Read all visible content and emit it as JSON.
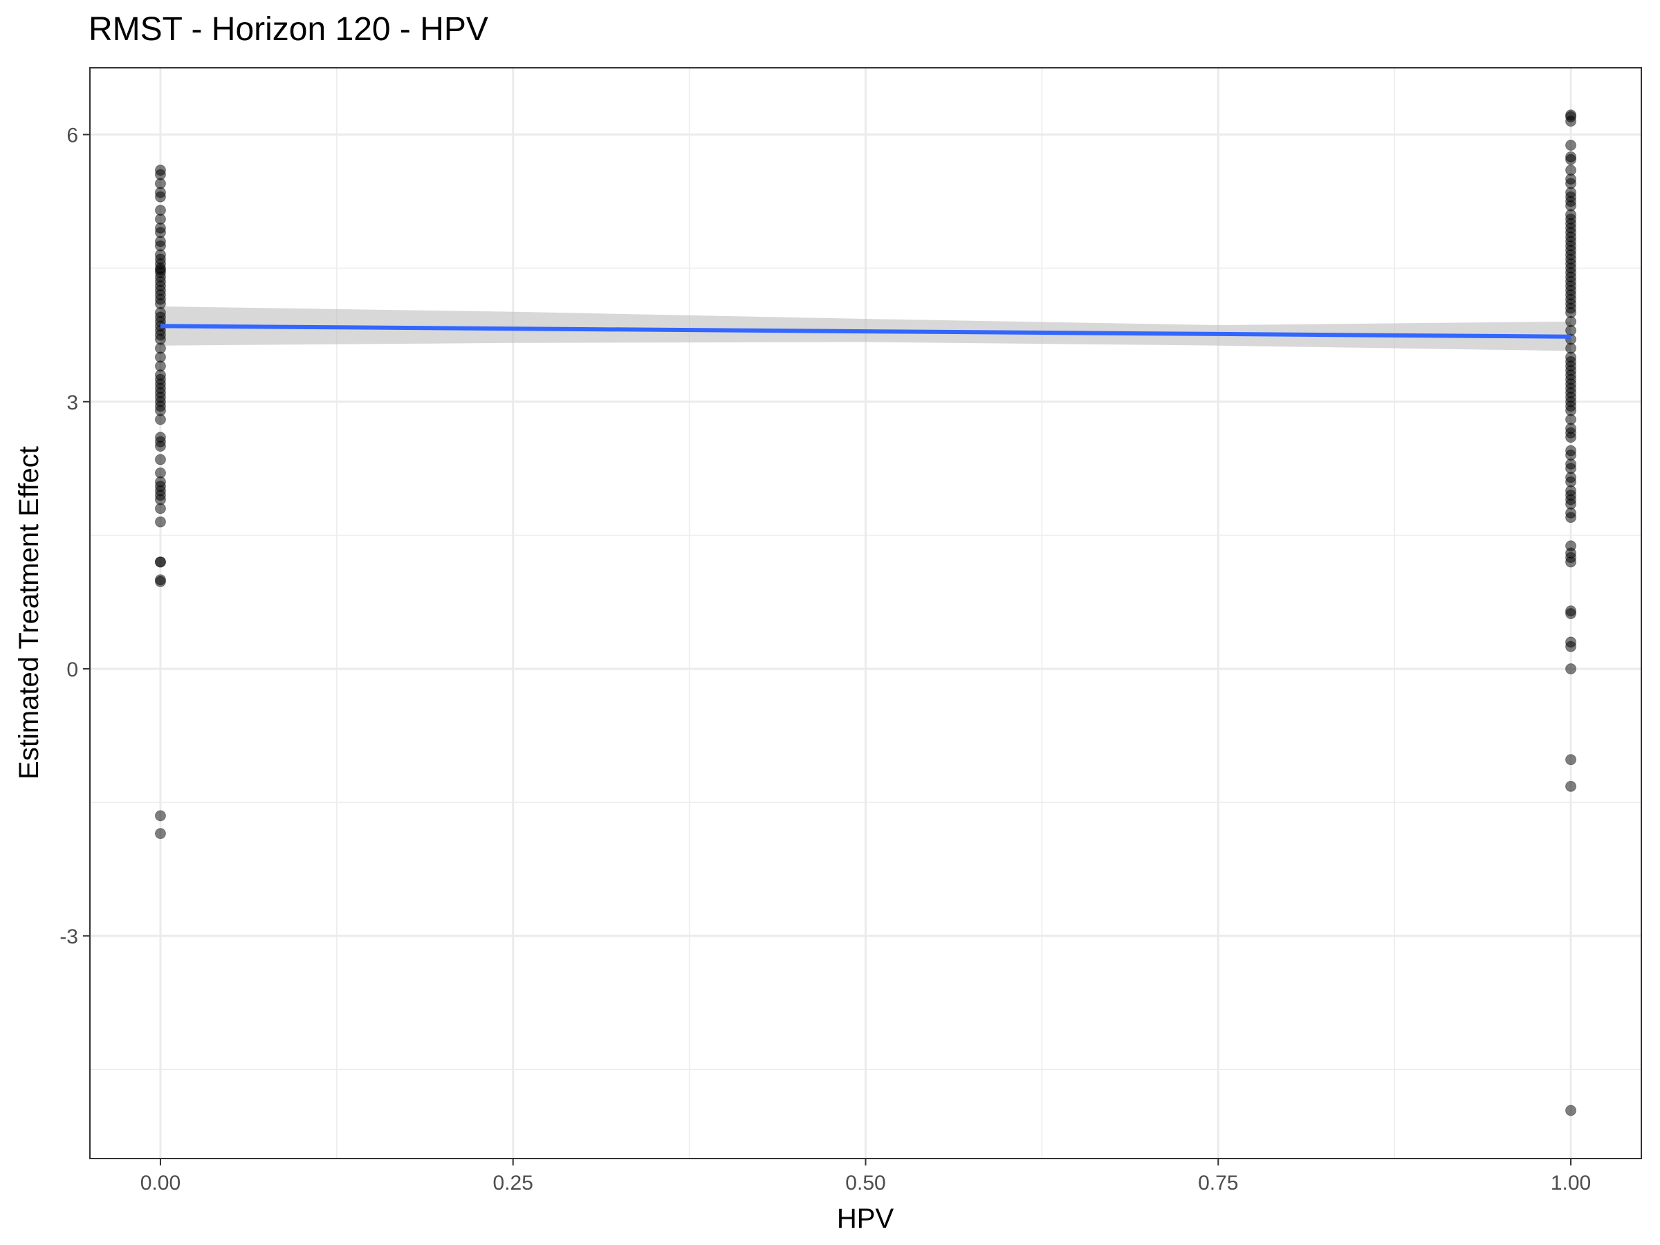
{
  "chart_data": {
    "type": "scatter",
    "title": "RMST - Horizon 120 - HPV",
    "xlabel": "HPV",
    "ylabel": "Estimated Treatment Effect",
    "xlim": [
      -0.05,
      1.05
    ],
    "ylim": [
      -5.5,
      6.75
    ],
    "x_ticks": [
      0,
      0.25,
      0.5,
      0.75,
      1
    ],
    "x_tick_labels": [
      "0.00",
      "0.25",
      "0.50",
      "0.75",
      "1.00"
    ],
    "y_ticks": [
      -3,
      0,
      3,
      6
    ],
    "y_tick_labels": [
      "-3",
      "0",
      "3",
      "6"
    ],
    "grid": true,
    "legend": "none",
    "colors": {
      "points": "#000000",
      "fit_line": "#3366FF",
      "confidence_band": "#BEBEBE",
      "grid": "#EBEBEB",
      "panel_border": "#333333"
    },
    "series": [
      {
        "x": [
          0,
          0,
          0,
          0,
          0,
          0,
          0,
          0,
          0,
          0,
          0,
          0,
          0,
          0,
          0,
          0,
          0,
          0,
          0,
          0,
          0,
          0,
          0,
          0,
          0,
          0,
          0,
          0,
          0,
          0,
          0,
          0,
          0,
          0,
          0,
          0,
          0,
          0,
          0,
          0,
          0,
          0,
          0,
          0,
          0,
          0,
          0,
          0,
          0,
          0,
          0,
          0,
          0,
          0,
          0,
          0,
          0,
          0,
          0,
          0,
          0,
          0
        ],
        "y": [
          5.6,
          5.55,
          5.45,
          5.35,
          5.3,
          5.15,
          5.05,
          4.95,
          4.9,
          4.8,
          4.75,
          4.65,
          4.6,
          4.55,
          4.5,
          4.45,
          4.4,
          4.35,
          4.3,
          4.25,
          4.2,
          4.15,
          4.1,
          4.0,
          3.95,
          3.9,
          3.85,
          3.8,
          3.75,
          3.7,
          3.6,
          3.5,
          3.4,
          3.3,
          3.25,
          3.2,
          3.1,
          3.05,
          3.0,
          2.95,
          2.9,
          2.8,
          2.6,
          2.55,
          2.5,
          2.35,
          2.2,
          2.1,
          2.05,
          2.0,
          1.95,
          1.9,
          1.8,
          1.65,
          1.2,
          1.2,
          1.0,
          0.98,
          -1.65,
          -1.85,
          4.48,
          3.15
        ]
      },
      {
        "x": [
          1,
          1,
          1,
          1,
          1,
          1,
          1,
          1,
          1,
          1,
          1,
          1,
          1,
          1,
          1,
          1,
          1,
          1,
          1,
          1,
          1,
          1,
          1,
          1,
          1,
          1,
          1,
          1,
          1,
          1,
          1,
          1,
          1,
          1,
          1,
          1,
          1,
          1,
          1,
          1,
          1,
          1,
          1,
          1,
          1,
          1,
          1,
          1,
          1,
          1,
          1,
          1,
          1,
          1,
          1,
          1,
          1,
          1,
          1,
          1,
          1,
          1,
          1,
          1,
          1,
          1,
          1,
          1,
          1,
          1,
          1,
          1,
          1,
          1,
          1,
          1,
          1,
          1,
          1,
          1
        ],
        "y": [
          6.22,
          6.2,
          6.15,
          5.88,
          5.75,
          5.72,
          5.6,
          5.5,
          5.45,
          5.35,
          5.3,
          5.25,
          5.2,
          5.1,
          5.05,
          5.0,
          4.95,
          4.9,
          4.85,
          4.8,
          4.75,
          4.7,
          4.65,
          4.6,
          4.55,
          4.5,
          4.45,
          4.4,
          4.35,
          4.3,
          4.25,
          4.2,
          4.15,
          4.1,
          4.05,
          4.0,
          3.9,
          3.8,
          3.7,
          3.6,
          3.5,
          3.45,
          3.4,
          3.35,
          3.3,
          3.25,
          3.2,
          3.15,
          3.1,
          3.05,
          3.0,
          2.95,
          2.9,
          2.8,
          2.7,
          2.65,
          2.6,
          2.45,
          2.4,
          2.3,
          2.25,
          2.15,
          2.1,
          2.0,
          1.95,
          1.9,
          1.85,
          1.75,
          1.7,
          1.38,
          1.3,
          1.25,
          1.2,
          0.65,
          0.62,
          0.3,
          0.25,
          0.0,
          -1.02,
          -1.32
        ]
      },
      {
        "x": [
          1
        ],
        "y": [
          -4.96
        ]
      }
    ],
    "fit_line": {
      "x": [
        0,
        1
      ],
      "y": [
        3.85,
        3.73
      ]
    },
    "confidence_band": {
      "x": [
        0,
        0.25,
        0.5,
        0.75,
        1
      ],
      "lower": [
        3.63,
        3.66,
        3.67,
        3.63,
        3.57
      ],
      "upper": [
        4.07,
        4.01,
        3.93,
        3.86,
        3.9
      ]
    }
  }
}
